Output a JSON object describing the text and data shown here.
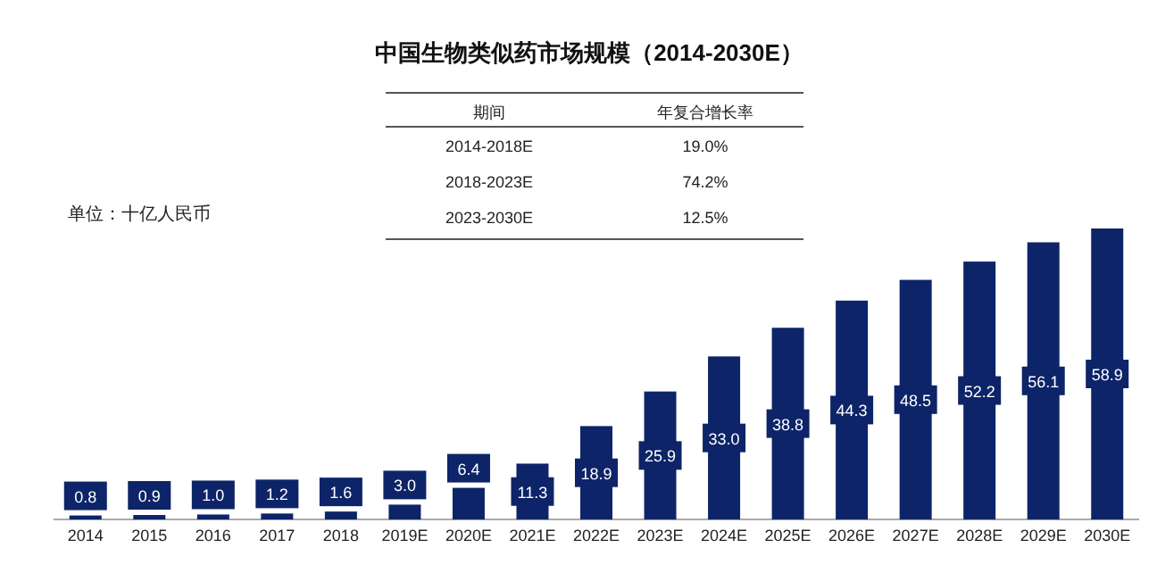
{
  "chart_data": {
    "type": "bar",
    "title": "中国生物类似药市场规模（2014-2030E）",
    "ylabel": "单位：十亿人民币",
    "categories": [
      "2014",
      "2015",
      "2016",
      "2017",
      "2018",
      "2019E",
      "2020E",
      "2021E",
      "2022E",
      "2023E",
      "2024E",
      "2025E",
      "2026E",
      "2027E",
      "2028E",
      "2029E",
      "2030E"
    ],
    "values": [
      0.8,
      0.9,
      1.0,
      1.2,
      1.6,
      3.0,
      6.4,
      11.3,
      18.9,
      25.9,
      33.0,
      38.8,
      44.3,
      48.5,
      52.2,
      56.1,
      58.9
    ],
    "color": "#0d2468",
    "value_labels": [
      "0.8",
      "0.9",
      "1.0",
      "1.2",
      "1.6",
      "3.0",
      "6.4",
      "11.3",
      "18.9",
      "25.9",
      "33.0",
      "38.8",
      "44.3",
      "48.5",
      "52.2",
      "56.1",
      "58.9"
    ],
    "annotations": [
      "期间",
      "年复合增长率",
      "2014-2018E",
      "19.0%",
      "2018-2023E",
      "74.2%",
      "2023-2030E",
      "12.5%"
    ]
  }
}
